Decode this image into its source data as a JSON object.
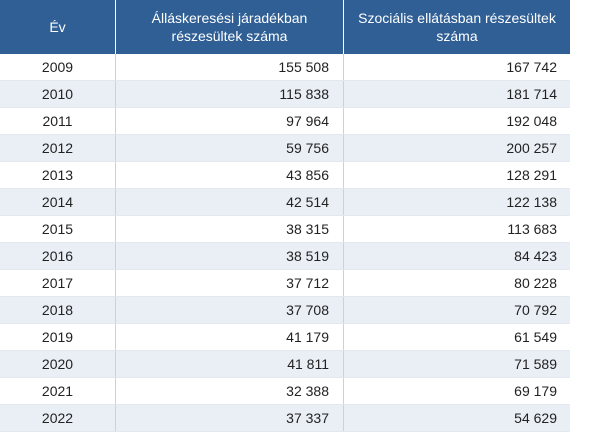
{
  "table": {
    "headers": {
      "year": "Év",
      "col_a": "Álláskeresési járadékban részesültek száma",
      "col_b": "Szociális ellátásban részesültek száma"
    },
    "rows": [
      {
        "year": "2009",
        "a": "155 508",
        "b": "167 742"
      },
      {
        "year": "2010",
        "a": "115 838",
        "b": "181 714"
      },
      {
        "year": "2011",
        "a": "97 964",
        "b": "192 048"
      },
      {
        "year": "2012",
        "a": "59 756",
        "b": "200 257"
      },
      {
        "year": "2013",
        "a": "43 856",
        "b": "128 291"
      },
      {
        "year": "2014",
        "a": "42 514",
        "b": "122 138"
      },
      {
        "year": "2015",
        "a": "38 315",
        "b": "113 683"
      },
      {
        "year": "2016",
        "a": "38 519",
        "b": "84 423"
      },
      {
        "year": "2017",
        "a": "37 712",
        "b": "80 228"
      },
      {
        "year": "2018",
        "a": "37 708",
        "b": "70 792"
      },
      {
        "year": "2019",
        "a": "41 179",
        "b": "61 549"
      },
      {
        "year": "2020",
        "a": "41 811",
        "b": "71 589"
      },
      {
        "year": "2021",
        "a": "32 388",
        "b": "69 179"
      },
      {
        "year": "2022",
        "a": "37 337",
        "b": "54 629"
      }
    ]
  },
  "colors": {
    "header_bg": "#2f5f95",
    "stripe": "#eaeff6"
  }
}
